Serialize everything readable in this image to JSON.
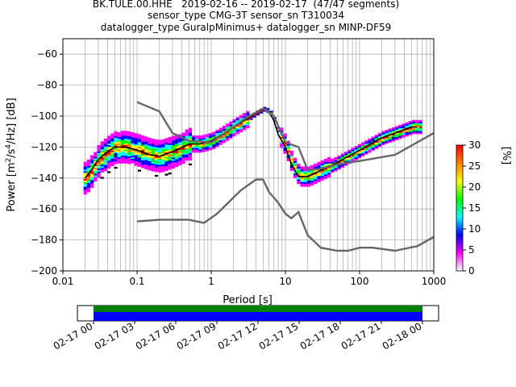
{
  "title_lines": [
    "BK.TULE.00.HHE   2019-02-16 -- 2019-02-17  (47/47 segments)",
    "sensor_type CMG-3T sensor_sn T310034",
    "datalogger_type GuralpMinimus+ datalogger_sn MINP-DF59"
  ],
  "chart_data": {
    "type": "heatmap",
    "xlabel": "Period [s]",
    "ylabel_parts": [
      "Power [m",
      "2",
      "/s",
      "4",
      "/Hz] [dB]"
    ],
    "x_scale": "log",
    "xlim": [
      0.01,
      1000
    ],
    "ylim": [
      -200,
      -50
    ],
    "x_ticks": [
      0.01,
      0.1,
      1,
      10,
      100,
      1000
    ],
    "x_tick_labels": [
      "0.01",
      "0.1",
      "1",
      "10",
      "100",
      "1000"
    ],
    "y_ticks": [
      -60,
      -80,
      -100,
      -120,
      -140,
      -160,
      -180,
      -200
    ],
    "y_tick_labels": [
      "−60",
      "−80",
      "−100",
      "−120",
      "−140",
      "−160",
      "−180",
      "−200"
    ],
    "grid": true,
    "colorbar": {
      "label": "[%]",
      "range": [
        0,
        30
      ],
      "ticks": [
        0,
        5,
        10,
        15,
        20,
        25,
        30
      ],
      "colors": [
        "#ffffff",
        "#ff00ff",
        "#0000ff",
        "#00ffff",
        "#00ff00",
        "#ffff00",
        "#ff8000",
        "#ff0000"
      ]
    },
    "series": [
      {
        "color": "#000000",
        "points": [
          [
            0.02,
            -140
          ],
          [
            0.025,
            -134
          ],
          [
            0.03,
            -128
          ],
          [
            0.04,
            -123
          ],
          [
            0.05,
            -120
          ],
          [
            0.07,
            -120
          ],
          [
            0.1,
            -122
          ],
          [
            0.15,
            -125
          ],
          [
            0.2,
            -126
          ],
          [
            0.3,
            -123
          ],
          [
            0.5,
            -118
          ],
          [
            0.7,
            -118
          ],
          [
            1,
            -116
          ],
          [
            1.5,
            -111
          ],
          [
            2,
            -107
          ],
          [
            3,
            -102
          ],
          [
            4,
            -98
          ],
          [
            5,
            -95.5
          ],
          [
            6,
            -97
          ],
          [
            7,
            -103
          ],
          [
            8,
            -112
          ],
          [
            10,
            -120
          ],
          [
            12,
            -131
          ],
          [
            15,
            -139
          ],
          [
            20,
            -139
          ],
          [
            30,
            -135
          ],
          [
            50,
            -130
          ],
          [
            100,
            -122
          ],
          [
            200,
            -114
          ],
          [
            300,
            -111
          ],
          [
            500,
            -107
          ],
          [
            600,
            -107
          ]
        ]
      },
      {
        "color": "#666666",
        "points": [
          [
            0.1,
            -91
          ],
          [
            0.2,
            -97
          ],
          [
            0.3,
            -111
          ],
          [
            0.5,
            -116
          ],
          [
            1,
            -117
          ],
          [
            2,
            -107
          ],
          [
            3,
            -101
          ],
          [
            5,
            -95
          ],
          [
            7,
            -100
          ],
          [
            10,
            -117
          ],
          [
            15,
            -120
          ],
          [
            20,
            -135
          ],
          [
            30,
            -134
          ],
          [
            50,
            -131
          ],
          [
            100,
            -129
          ],
          [
            300,
            -125
          ],
          [
            1000,
            -111
          ]
        ]
      },
      {
        "color": "#666666",
        "points": [
          [
            0.1,
            -168
          ],
          [
            0.2,
            -167
          ],
          [
            0.5,
            -167
          ],
          [
            0.8,
            -169
          ],
          [
            1.2,
            -163
          ],
          [
            2.5,
            -148
          ],
          [
            4,
            -141
          ],
          [
            5,
            -141
          ],
          [
            6,
            -149
          ],
          [
            8,
            -156
          ],
          [
            10,
            -163
          ],
          [
            12,
            -166
          ],
          [
            15,
            -162
          ],
          [
            20,
            -177
          ],
          [
            30,
            -185
          ],
          [
            50,
            -187
          ],
          [
            70,
            -187
          ],
          [
            100,
            -185
          ],
          [
            150,
            -185
          ],
          [
            300,
            -187
          ],
          [
            600,
            -184
          ],
          [
            1000,
            -178
          ]
        ]
      }
    ]
  },
  "timeline": {
    "tick_labels": [
      "02-17 00",
      "02-17 03",
      "02-17 06",
      "02-17 09",
      "02-17 12",
      "02-17 15",
      "02-17 18",
      "02-17 21",
      "02-18 00"
    ],
    "bar_colors": [
      "#008000",
      "#0000ff"
    ]
  }
}
